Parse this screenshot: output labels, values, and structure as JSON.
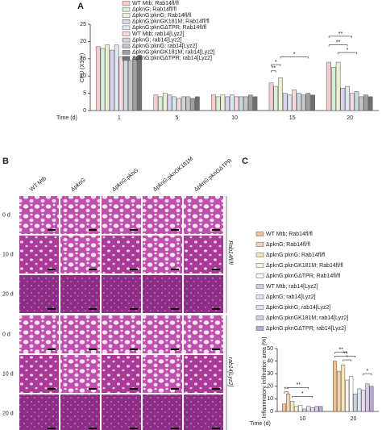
{
  "panel_labels": [
    "A",
    "B",
    "C"
  ],
  "chart_data": [
    {
      "type": "bar",
      "ylabel": "CFU (X10⁵)",
      "xlabel": "Time (d)",
      "categories": [
        "1",
        "5",
        "10",
        "15",
        "20"
      ],
      "ylim": [
        0,
        25
      ],
      "yticks": [
        0,
        5,
        10,
        15,
        20,
        25
      ],
      "series": [
        {
          "name": "WT Mtb; Rab14fl/fl",
          "color": "#f6cccc",
          "values": [
            18.5,
            4.5,
            4.5,
            8,
            14
          ]
        },
        {
          "name": "ΔpknG; Rab14fl/fl",
          "color": "#d6efdc",
          "values": [
            18,
            4,
            4,
            7,
            12.5
          ]
        },
        {
          "name": "ΔpknG:pknG; Rab14fl/fl",
          "color": "#ebf1cf",
          "values": [
            19,
            5,
            4.5,
            9.5,
            14
          ]
        },
        {
          "name": "ΔpknG:pknGK181M; Rab14fl/fl",
          "color": "#dcd3ec",
          "values": [
            17.5,
            4.5,
            4,
            5,
            6.5
          ]
        },
        {
          "name": "ΔpknG:pknGΔTPR; Rab14fl/fl",
          "color": "#dde7f0",
          "values": [
            19,
            4,
            4.5,
            4.5,
            7
          ]
        },
        {
          "name": "WT Mtb; rab14[Lyz2]",
          "color": "#f7d9de",
          "values": [
            15.5,
            3.5,
            4,
            6,
            5
          ]
        },
        {
          "name": "ΔpknG; rab14[Lyz2]",
          "color": "#cdd7df",
          "values": [
            15,
            4,
            4,
            5,
            5.5
          ]
        },
        {
          "name": "ΔpknG:pknG; rab14[Lyz2]",
          "color": "#c6c6c6",
          "values": [
            14.5,
            4,
            4,
            4.5,
            4
          ]
        },
        {
          "name": "ΔpknG:pknGK181M; rab14[Lyz2]",
          "color": "#9d9fa1",
          "values": [
            15.5,
            3.5,
            4.5,
            5,
            4.5
          ]
        },
        {
          "name": "ΔpknG:pknGΔTPR; rab14[Lyz2]",
          "color": "#6e7173",
          "values": [
            16,
            4,
            4,
            4.5,
            4
          ]
        }
      ],
      "annotations": [
        "**",
        "*",
        "*",
        "**",
        "**",
        "*"
      ]
    },
    {
      "type": "bar",
      "ylabel": "Inflammatory infiltration area (%)",
      "xlabel": "Time (d)",
      "categories": [
        "10",
        "20"
      ],
      "ylim": [
        0,
        50
      ],
      "yticks": [
        0,
        10,
        20,
        30,
        40,
        50
      ],
      "series": [
        {
          "name": "WT Mtb; Rab14fl/fl",
          "color": "#f3c08f",
          "values": [
            6,
            40
          ]
        },
        {
          "name": "ΔpknG; Rab14fl/fl",
          "color": "#f6d2b3",
          "values": [
            14,
            32
          ]
        },
        {
          "name": "ΔpknG:pknG; Rab14fl/fl",
          "color": "#f7e7b8",
          "values": [
            8,
            37
          ]
        },
        {
          "name": "ΔpknG:pknGK181M; Rab14fl/fl",
          "color": "#fbf1dc",
          "values": [
            4,
            25
          ]
        },
        {
          "name": "ΔpknG:pknGΔTPR; Rab14fl/fl",
          "color": "#ffffff",
          "values": [
            5,
            28
          ]
        },
        {
          "name": "WT Mtb; rab14[Lyz2]",
          "color": "#c9d3df",
          "values": [
            2,
            14
          ]
        },
        {
          "name": "ΔpknG; rab14[Lyz2]",
          "color": "#dfe5ee",
          "values": [
            4,
            18
          ]
        },
        {
          "name": "ΔpknG:pknG; rab14[Lyz2]",
          "color": "#e6dcef",
          "values": [
            3,
            17
          ]
        },
        {
          "name": "ΔpknG:pknGK181M; rab14[Lyz2]",
          "color": "#d9c8e6",
          "values": [
            4,
            22
          ]
        },
        {
          "name": "ΔpknG:pknGΔTPR; rab14[Lyz2]",
          "color": "#b9a7cf",
          "values": [
            4,
            20
          ]
        }
      ],
      "annotations": [
        "**",
        "**",
        "*",
        "**",
        "**",
        "*",
        "*"
      ]
    }
  ],
  "histology": {
    "columns": [
      "WT Mtb",
      "ΔpknG",
      "ΔpknG:pknG",
      "ΔpknG:pknGK181M",
      "ΔpknG:pknGΔTPR"
    ],
    "groups": [
      {
        "label": "Rab14fl/fl",
        "rows": [
          "0 d",
          "10 d",
          "20 d"
        ]
      },
      {
        "label": "rab14[Lyz2]",
        "rows": [
          "0 d",
          "10 d",
          "20 d"
        ]
      }
    ]
  }
}
